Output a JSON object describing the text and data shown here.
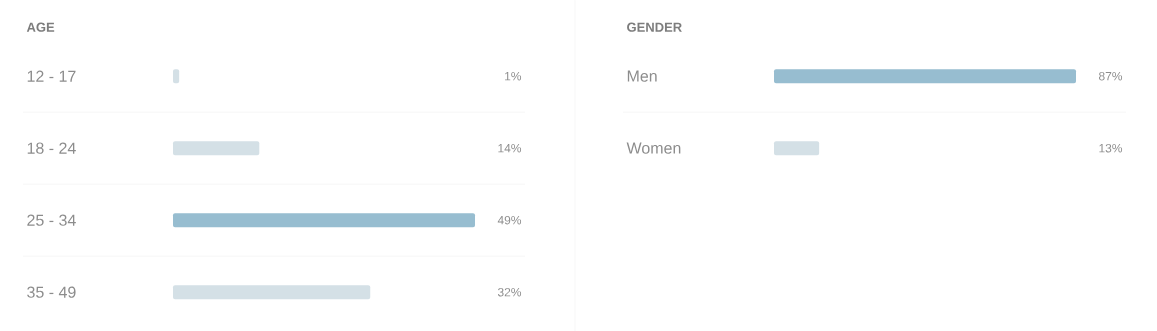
{
  "chart_data": [
    {
      "type": "bar",
      "orientation": "horizontal",
      "title": "AGE",
      "categories": [
        "12 - 17",
        "18 - 24",
        "25 - 34",
        "35 - 49"
      ],
      "values": [
        1,
        14,
        49,
        32
      ],
      "colors": [
        "#d4e0e6",
        "#d4e0e6",
        "#97bdd0",
        "#d4e0e6"
      ],
      "value_labels": [
        "1%",
        "14%",
        "49%",
        "32%"
      ]
    },
    {
      "type": "bar",
      "orientation": "horizontal",
      "title": "GENDER",
      "categories": [
        "Men",
        "Women"
      ],
      "values": [
        87,
        13
      ],
      "colors": [
        "#97bdd0",
        "#d4e0e6"
      ],
      "value_labels": [
        "87%",
        "13%"
      ]
    }
  ]
}
